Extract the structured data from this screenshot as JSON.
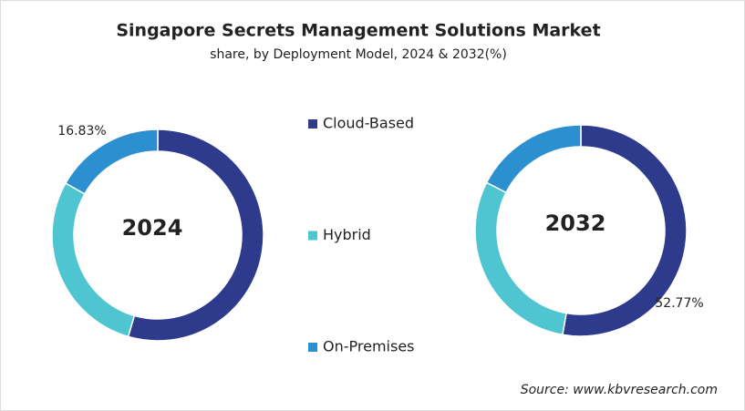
{
  "chart_data": {
    "type": "donut",
    "title": "Singapore Secrets Management Solutions Market",
    "subtitle": "share, by Deployment Model, 2024 & 2032(%)",
    "categories": [
      "Cloud-Based",
      "Hybrid",
      "On-Premises"
    ],
    "colors": [
      "#2e3a8c",
      "#4fc5d2",
      "#2b8fd0"
    ],
    "series": [
      {
        "name": "2024",
        "values": [
          54.5,
          28.67,
          16.83
        ],
        "value_labels": [
          null,
          null,
          "16.83%"
        ]
      },
      {
        "name": "2032",
        "values": [
          52.77,
          29.73,
          17.5
        ],
        "value_labels": [
          "52.77%",
          null,
          null
        ]
      }
    ],
    "source": "Source: www.kbvresearch.com"
  }
}
